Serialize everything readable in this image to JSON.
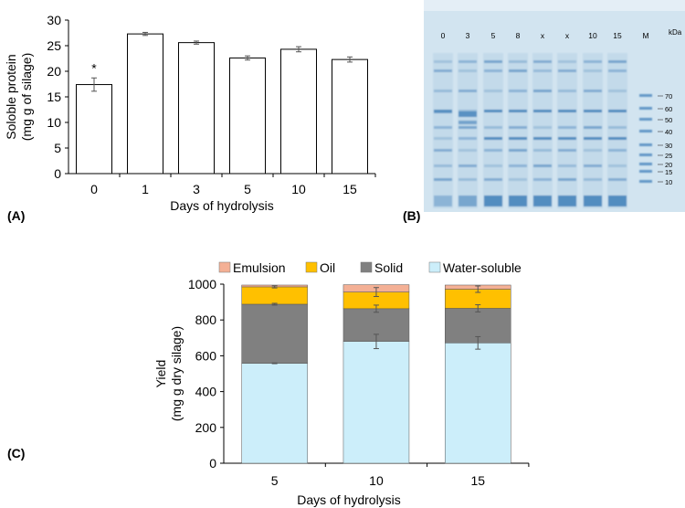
{
  "panels": {
    "a_label": "(A)",
    "b_label": "(B)",
    "c_label": "(C)"
  },
  "chart_data": [
    {
      "panel": "A",
      "type": "bar",
      "xlabel": "Days of hydrolysis",
      "ylabel": "Soloble protein",
      "ylabel_unit": "(mg g of silage)",
      "categories": [
        "0",
        "1",
        "3",
        "5",
        "10",
        "15"
      ],
      "values": [
        17.4,
        27.3,
        25.6,
        22.6,
        24.3,
        22.3
      ],
      "errors": [
        1.3,
        0.3,
        0.3,
        0.4,
        0.5,
        0.5
      ],
      "annotation": "*",
      "annotation_category": "0",
      "ylim": [
        0,
        30
      ],
      "yticks": [
        0,
        5,
        10,
        15,
        20,
        25,
        30
      ],
      "bar_color": "#ffffff",
      "bar_edge_color": "#000000"
    },
    {
      "panel": "C",
      "type": "bar",
      "stacked": true,
      "xlabel": "Days of hydrolysis",
      "ylabel": "Yield",
      "ylabel_unit": "(mg g dry silage)",
      "categories": [
        "5",
        "10",
        "15"
      ],
      "series": [
        {
          "name": "Water-soluble",
          "color": "#cceefa",
          "values": [
            558,
            680,
            672
          ],
          "errors": [
            2,
            40,
            35
          ]
        },
        {
          "name": "Solid",
          "color": "#808080",
          "values": [
            330,
            183,
            193
          ],
          "errors": [
            5,
            20,
            20
          ]
        },
        {
          "name": "Oil",
          "color": "#ffc000",
          "values": [
            97,
            93,
            107
          ],
          "errors": [
            6,
            25,
            18
          ]
        },
        {
          "name": "Emulsion",
          "color": "#f4b095",
          "values": [
            10,
            41,
            23
          ],
          "errors": [
            0,
            0,
            0
          ]
        }
      ],
      "legend_order": [
        "Emulsion",
        "Oil",
        "Solid",
        "Water-soluble"
      ],
      "legend_position": "top",
      "ylim": [
        0,
        1000
      ],
      "yticks": [
        0,
        200,
        400,
        600,
        800,
        1000
      ]
    }
  ],
  "gel": {
    "lane_labels": [
      "0",
      "3",
      "5",
      "8",
      "x",
      "x",
      "10",
      "15",
      "M"
    ],
    "unit_label": "kDa",
    "marker_sizes": [
      "70",
      "60",
      "50",
      "40",
      "30",
      "25",
      "20",
      "15",
      "10"
    ],
    "background_color": "#cfe2ef",
    "band_color": "#3f7fb9"
  }
}
